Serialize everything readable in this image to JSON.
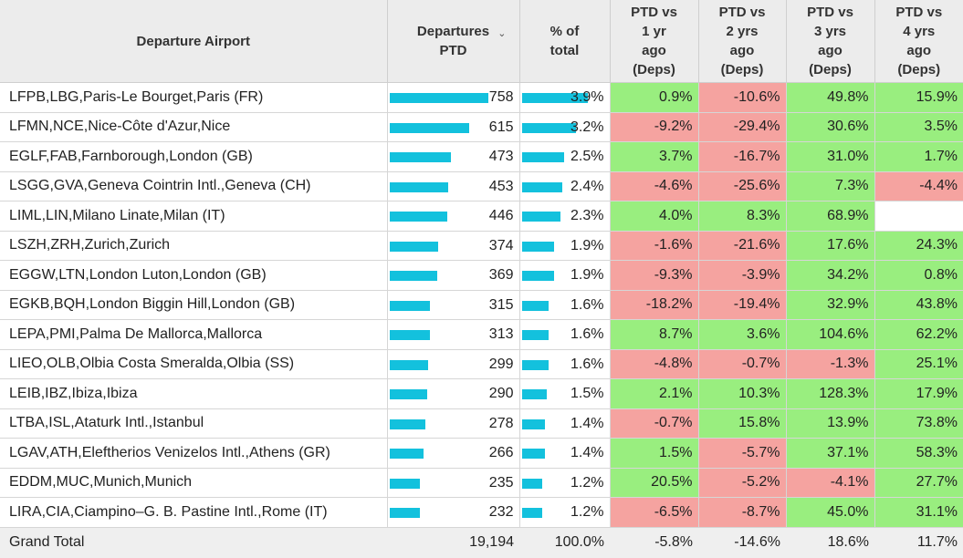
{
  "headers": {
    "airport": "Departure Airport",
    "departures": "Departures\nPTD",
    "pct": "% of\ntotal",
    "v1": "PTD vs\n1 yr\nago\n(Deps)",
    "v2": "PTD vs\n2 yrs\nago\n(Deps)",
    "v3": "PTD vs\n3 yrs\nago\n(Deps)",
    "v4": "PTD vs\n4 yrs\nago\n(Deps)",
    "sort_icon": "chevron-down-icon"
  },
  "colors": {
    "bar": "#13c1dd",
    "positive": "#99ee7f",
    "negative": "#f5a3a0",
    "header_bg": "#ececec"
  },
  "max_departures": 758,
  "max_pct": 3.9,
  "rows": [
    {
      "airport": "LFPB,LBG,Paris-Le Bourget,Paris (FR)",
      "deps": 758,
      "deps_label": "758",
      "pct": 3.9,
      "pct_label": "3.9%",
      "v1": "0.9%",
      "v2": "-10.6%",
      "v3": "49.8%",
      "v4": "15.9%"
    },
    {
      "airport": "LFMN,NCE,Nice-Côte d'Azur,Nice",
      "deps": 615,
      "deps_label": "615",
      "pct": 3.2,
      "pct_label": "3.2%",
      "v1": "-9.2%",
      "v2": "-29.4%",
      "v3": "30.6%",
      "v4": "3.5%"
    },
    {
      "airport": "EGLF,FAB,Farnborough,London (GB)",
      "deps": 473,
      "deps_label": "473",
      "pct": 2.5,
      "pct_label": "2.5%",
      "v1": "3.7%",
      "v2": "-16.7%",
      "v3": "31.0%",
      "v4": "1.7%"
    },
    {
      "airport": "LSGG,GVA,Geneva Cointrin Intl.,Geneva (CH)",
      "deps": 453,
      "deps_label": "453",
      "pct": 2.4,
      "pct_label": "2.4%",
      "v1": "-4.6%",
      "v2": "-25.6%",
      "v3": "7.3%",
      "v4": "-4.4%"
    },
    {
      "airport": "LIML,LIN,Milano Linate,Milan (IT)",
      "deps": 446,
      "deps_label": "446",
      "pct": 2.3,
      "pct_label": "2.3%",
      "v1": "4.0%",
      "v2": "8.3%",
      "v3": "68.9%",
      "v4": ""
    },
    {
      "airport": "LSZH,ZRH,Zurich,Zurich",
      "deps": 374,
      "deps_label": "374",
      "pct": 1.9,
      "pct_label": "1.9%",
      "v1": "-1.6%",
      "v2": "-21.6%",
      "v3": "17.6%",
      "v4": "24.3%"
    },
    {
      "airport": "EGGW,LTN,London Luton,London (GB)",
      "deps": 369,
      "deps_label": "369",
      "pct": 1.9,
      "pct_label": "1.9%",
      "v1": "-9.3%",
      "v2": "-3.9%",
      "v3": "34.2%",
      "v4": "0.8%"
    },
    {
      "airport": "EGKB,BQH,London Biggin Hill,London (GB)",
      "deps": 315,
      "deps_label": "315",
      "pct": 1.6,
      "pct_label": "1.6%",
      "v1": "-18.2%",
      "v2": "-19.4%",
      "v3": "32.9%",
      "v4": "43.8%"
    },
    {
      "airport": "LEPA,PMI,Palma De Mallorca,Mallorca",
      "deps": 313,
      "deps_label": "313",
      "pct": 1.6,
      "pct_label": "1.6%",
      "v1": "8.7%",
      "v2": "3.6%",
      "v3": "104.6%",
      "v4": "62.2%"
    },
    {
      "airport": "LIEO,OLB,Olbia Costa Smeralda,Olbia (SS)",
      "deps": 299,
      "deps_label": "299",
      "pct": 1.6,
      "pct_label": "1.6%",
      "v1": "-4.8%",
      "v2": "-0.7%",
      "v3": "-1.3%",
      "v4": "25.1%"
    },
    {
      "airport": "LEIB,IBZ,Ibiza,Ibiza",
      "deps": 290,
      "deps_label": "290",
      "pct": 1.5,
      "pct_label": "1.5%",
      "v1": "2.1%",
      "v2": "10.3%",
      "v3": "128.3%",
      "v4": "17.9%"
    },
    {
      "airport": "LTBA,ISL,Ataturk Intl.,Istanbul",
      "deps": 278,
      "deps_label": "278",
      "pct": 1.4,
      "pct_label": "1.4%",
      "v1": "-0.7%",
      "v2": "15.8%",
      "v3": "13.9%",
      "v4": "73.8%"
    },
    {
      "airport": "LGAV,ATH,Eleftherios Venizelos Intl.,Athens (GR)",
      "deps": 266,
      "deps_label": "266",
      "pct": 1.4,
      "pct_label": "1.4%",
      "v1": "1.5%",
      "v2": "-5.7%",
      "v3": "37.1%",
      "v4": "58.3%"
    },
    {
      "airport": "EDDM,MUC,Munich,Munich",
      "deps": 235,
      "deps_label": "235",
      "pct": 1.2,
      "pct_label": "1.2%",
      "v1": "20.5%",
      "v2": "-5.2%",
      "v3": "-4.1%",
      "v4": "27.7%"
    },
    {
      "airport": "LIRA,CIA,Ciampino–G. B. Pastine Intl.,Rome (IT)",
      "deps": 232,
      "deps_label": "232",
      "pct": 1.2,
      "pct_label": "1.2%",
      "v1": "-6.5%",
      "v2": "-8.7%",
      "v3": "45.0%",
      "v4": "31.1%"
    }
  ],
  "total": {
    "label": "Grand Total",
    "deps": "19,194",
    "pct": "100.0%",
    "v1": "-5.8%",
    "v2": "-14.6%",
    "v3": "18.6%",
    "v4": "11.7%"
  }
}
